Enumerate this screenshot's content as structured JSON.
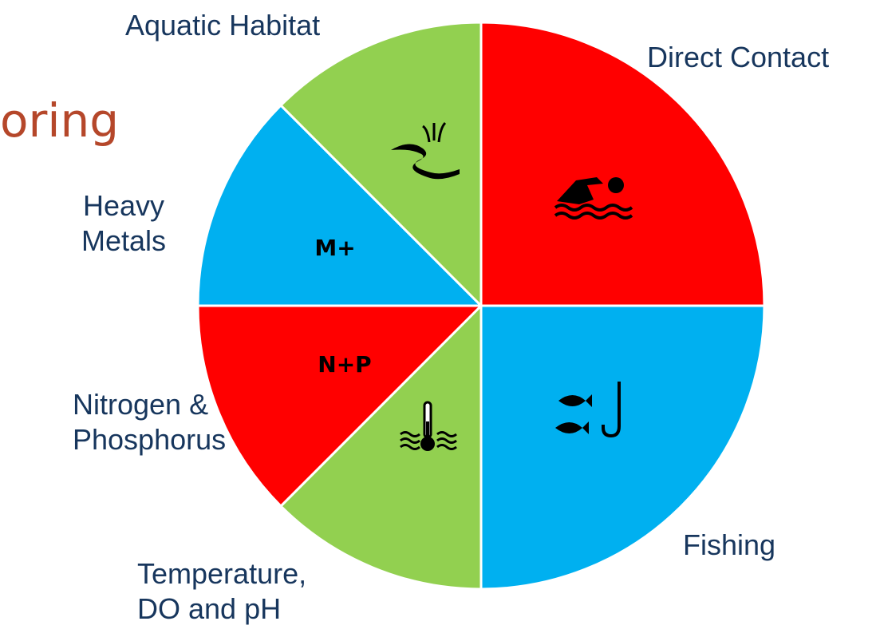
{
  "title_fragment": "oring",
  "segments": [
    {
      "label": [
        "Direct Contact"
      ],
      "color": "#ff0000",
      "icon": "swimmer-icon"
    },
    {
      "label": [
        "Fishing"
      ],
      "color": "#00b0f0",
      "icon": "fish-hook-icon"
    },
    {
      "label": [
        "Temperature,",
        "DO and pH"
      ],
      "color": "#92d050",
      "icon": "thermometer-water-icon"
    },
    {
      "label": [
        "Nitrogen &",
        "Phosphorus"
      ],
      "color": "#ff0000",
      "icon_text": "N+P"
    },
    {
      "label": [
        "Heavy",
        "Metals"
      ],
      "color": "#00b0f0",
      "icon_text": "M+"
    },
    {
      "label": [
        "Aquatic Habitat"
      ],
      "color": "#92d050",
      "icon": "stream-reeds-icon"
    }
  ]
}
